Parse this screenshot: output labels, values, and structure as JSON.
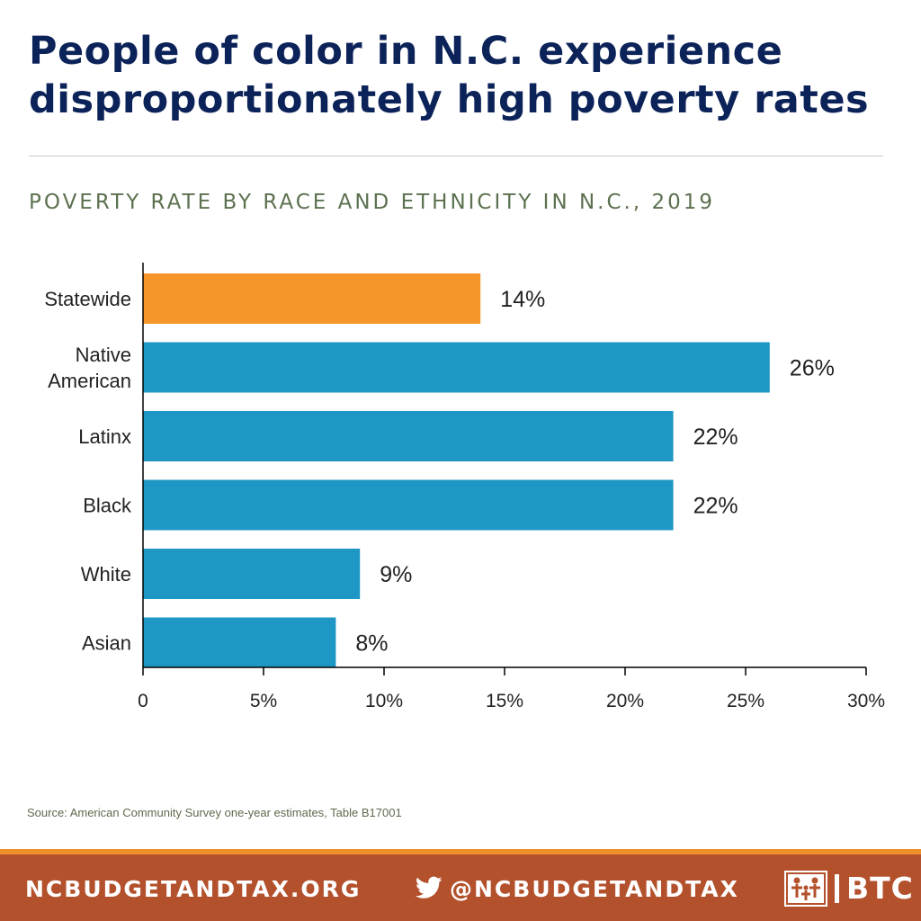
{
  "header": {
    "title_line1": "People of color in N.C. experience",
    "title_line2": "disproportionately high poverty rates",
    "subtitle": "POVERTY RATE BY RACE AND ETHNICITY IN N.C., 2019"
  },
  "chart_data": {
    "type": "bar",
    "orientation": "horizontal",
    "title": "POVERTY RATE BY RACE AND ETHNICITY IN N.C., 2019",
    "xlabel": "",
    "ylabel": "",
    "xlim": [
      0,
      30
    ],
    "x_ticks": [
      0,
      5,
      10,
      15,
      20,
      25,
      30
    ],
    "x_tick_labels": [
      "0",
      "5%",
      "10%",
      "15%",
      "20%",
      "25%",
      "30%"
    ],
    "categories": [
      [
        "Statewide"
      ],
      [
        "Native",
        "American"
      ],
      [
        "Latinx"
      ],
      [
        "Black"
      ],
      [
        "White"
      ],
      [
        "Asian"
      ]
    ],
    "values": [
      14,
      26,
      22,
      22,
      9,
      8
    ],
    "data_labels": [
      "14%",
      "26%",
      "22%",
      "22%",
      "9%",
      "8%"
    ],
    "bar_colors": [
      "#f5962a",
      "#1f97c4",
      "#1f97c4",
      "#1f97c4",
      "#1f97c4",
      "#1f97c4"
    ],
    "grid": false
  },
  "source": "Source: American Community Survey one-year estimates, Table B17001",
  "footer": {
    "site": "NCBUDGETANDTAX.ORG",
    "twitter_handle": "@NCBUDGETANDTAX",
    "logo_text": "BTC",
    "logo_icon": "family-icon",
    "twitter_icon": "twitter-bird-icon"
  },
  "colors": {
    "title": "#0c2359",
    "subtitle": "#5c7150",
    "footer_bg": "#b4512d",
    "footer_stripe": "#ef8f2a",
    "axis": "#000000"
  }
}
